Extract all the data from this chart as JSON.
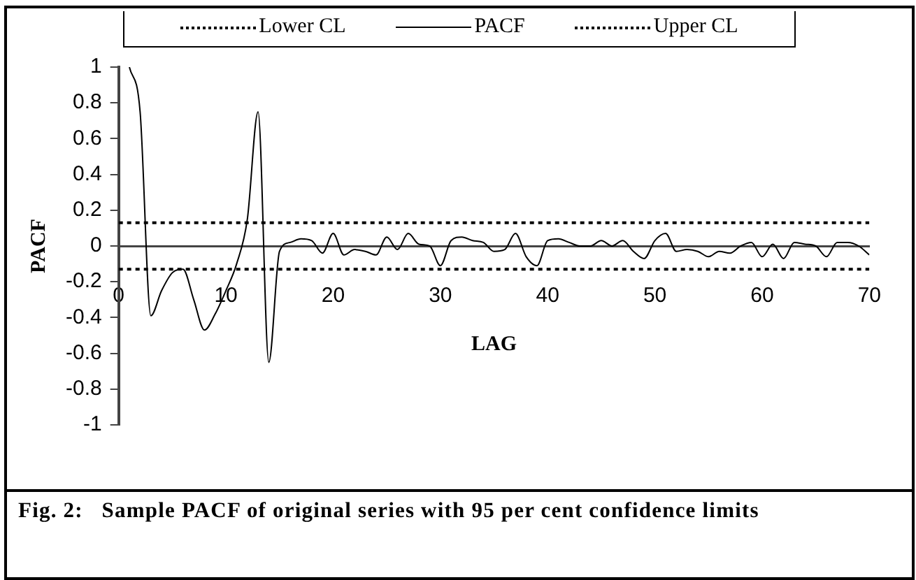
{
  "chart_data": {
    "type": "line",
    "xlabel": "LAG",
    "ylabel": "PACF",
    "xlim": [
      0,
      70
    ],
    "xticks": [
      0,
      10,
      20,
      30,
      40,
      50,
      60,
      70
    ],
    "ylim": [
      -1,
      1
    ],
    "yticks": [
      -1,
      -0.8,
      -0.6,
      -0.4,
      -0.2,
      0,
      0.2,
      0.4,
      0.6,
      0.8,
      1
    ],
    "grid": false,
    "legend": "top",
    "marker": "none",
    "series": [
      {
        "name": "Lower CL",
        "color": "#000000",
        "line_style": "dotted",
        "x": [
          0,
          70
        ],
        "values": [
          -0.13,
          -0.13
        ]
      },
      {
        "name": "PACF",
        "color": "#000000",
        "line_style": "solid",
        "x": [
          1,
          2,
          3,
          4,
          5,
          6,
          7,
          8,
          9,
          10,
          11,
          12,
          13,
          14,
          15,
          16,
          17,
          18,
          19,
          20,
          21,
          22,
          23,
          24,
          25,
          26,
          27,
          28,
          29,
          30,
          31,
          32,
          33,
          34,
          35,
          36,
          37,
          38,
          39,
          40,
          41,
          42,
          43,
          44,
          45,
          46,
          47,
          48,
          49,
          50,
          51,
          52,
          53,
          54,
          55,
          56,
          57,
          58,
          59,
          60,
          61,
          62,
          63,
          64,
          65,
          66,
          67,
          68,
          69,
          70
        ],
        "values": [
          1.0,
          0.75,
          -0.39,
          -0.25,
          -0.15,
          -0.13,
          -0.3,
          -0.47,
          -0.38,
          -0.25,
          -0.1,
          0.15,
          0.75,
          -0.65,
          -0.03,
          0.02,
          0.04,
          0.03,
          -0.04,
          0.07,
          -0.05,
          -0.02,
          -0.03,
          -0.05,
          0.05,
          -0.02,
          0.07,
          0.01,
          0.0,
          -0.11,
          0.03,
          0.05,
          0.03,
          0.02,
          -0.03,
          -0.02,
          0.07,
          -0.06,
          -0.11,
          0.03,
          0.04,
          0.02,
          0.0,
          0.0,
          0.03,
          0.0,
          0.03,
          -0.03,
          -0.07,
          0.03,
          0.07,
          -0.03,
          -0.02,
          -0.03,
          -0.06,
          -0.03,
          -0.04,
          0.0,
          0.02,
          -0.06,
          0.01,
          -0.07,
          0.02,
          0.01,
          0.0,
          -0.06,
          0.02,
          0.02,
          0.0,
          -0.05
        ]
      },
      {
        "name": "Upper CL",
        "color": "#000000",
        "line_style": "dotted",
        "x": [
          0,
          70
        ],
        "values": [
          0.13,
          0.13
        ]
      }
    ],
    "annotations": [
      "Fig. 2:   Sample PACF of original series with 95 per cent confidence limits"
    ]
  }
}
